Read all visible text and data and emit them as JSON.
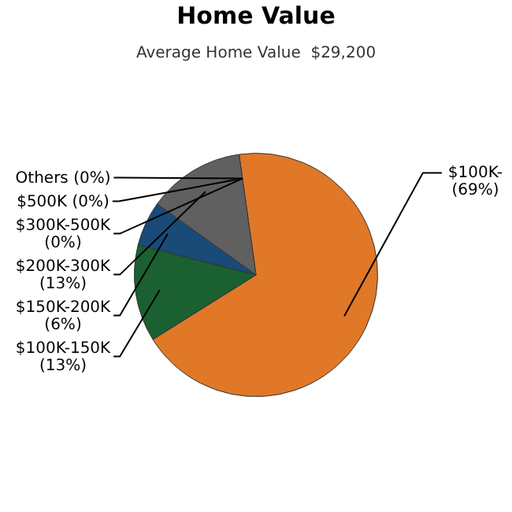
{
  "chart_data": {
    "type": "pie",
    "title": "Home Value",
    "subtitle": "Average Home Value  $29,200",
    "categories": [
      "$100K-",
      "$100K-150K",
      "$150K-200K",
      "$200K-300K",
      "$300K-500K",
      "$500K",
      "Others"
    ],
    "values": [
      69,
      13,
      6,
      13,
      0,
      0,
      0
    ],
    "value_labels": [
      "(69%)",
      "(13%)",
      "(6%)",
      "(13%)",
      "(0%)",
      "(0%)",
      "(0%)"
    ],
    "colors": [
      "#e07828",
      "#1a6030",
      "#1a4a78",
      "#606060",
      "#3a8a8a",
      "#2a5a2a",
      "#40a0c0"
    ],
    "legend": false
  }
}
